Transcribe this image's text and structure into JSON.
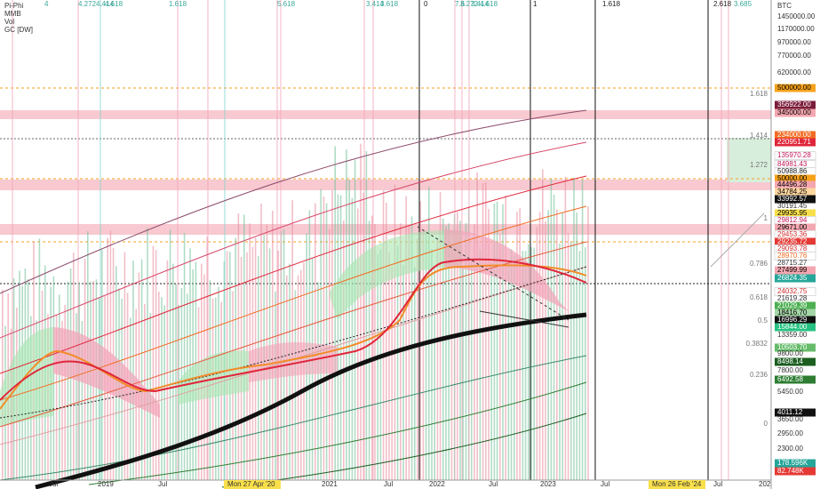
{
  "legend": [
    "Pi-Phi",
    "MMB",
    "Vol",
    "GC [DW]"
  ],
  "top_labels": [
    "4",
    "4.272",
    "4.414",
    "4.618",
    "1.618",
    "5.618",
    "3.414",
    "3.618",
    "0",
    "7.6",
    "3.272",
    "3.414",
    "4.618",
    "1",
    "1.618",
    "2.618",
    "3.685"
  ],
  "fib_labels": [
    "1.618",
    "1.414",
    "1.272",
    "1",
    "0.786",
    "0.618",
    "0.5",
    "0.3832",
    "0.236",
    "0"
  ],
  "price_axis": [
    {
      "label": "BTC",
      "bg": "none",
      "fg": "#333"
    },
    {
      "label": "1450000.00",
      "bg": "none",
      "fg": "#333"
    },
    {
      "label": "1170000.00",
      "bg": "none",
      "fg": "#333"
    },
    {
      "label": "970000.00",
      "bg": "none",
      "fg": "#333"
    },
    {
      "label": "770000.00",
      "bg": "none",
      "fg": "#333"
    },
    {
      "label": "620000.00",
      "bg": "none",
      "fg": "#333"
    },
    {
      "label": "500000.00",
      "bg": "#f7a21b",
      "fg": "#000"
    },
    {
      "label": "356922.00",
      "bg": "#7b1c3a",
      "fg": "#fff"
    },
    {
      "label": "345000.00",
      "bg": "#f4a7b0",
      "fg": "#000"
    },
    {
      "label": "234000.00",
      "bg": "#f26b21",
      "fg": "#fff"
    },
    {
      "label": "220951.71",
      "bg": "#e0263a",
      "fg": "#fff"
    },
    {
      "label": "135970.28",
      "bg": "#fff",
      "fg": "#c2185b"
    },
    {
      "label": "84981.43",
      "bg": "#fff",
      "fg": "#c2185b"
    },
    {
      "label": "50988.86",
      "bg": "#fff",
      "fg": "#222"
    },
    {
      "label": "50000.00",
      "bg": "#f7a21b",
      "fg": "#000"
    },
    {
      "label": "44496.28",
      "bg": "#f4a7b0",
      "fg": "#000"
    },
    {
      "label": "34784.25",
      "bg": "#ffd7a0",
      "fg": "#000"
    },
    {
      "label": "33992.57",
      "bg": "#111",
      "fg": "#fff"
    },
    {
      "label": "30191.45",
      "bg": "none",
      "fg": "#333"
    },
    {
      "label": "29935.95",
      "bg": "#f9e04b",
      "fg": "#000"
    },
    {
      "label": "29812.94",
      "bg": "#fff",
      "fg": "#c2185b"
    },
    {
      "label": "29671.00",
      "bg": "#f4a7b0",
      "fg": "#000"
    },
    {
      "label": "29453.36",
      "bg": "#fff",
      "fg": "#d32f2f"
    },
    {
      "label": "29235.72",
      "bg": "#e53935",
      "fg": "#fff"
    },
    {
      "label": "29093.78",
      "bg": "#fff",
      "fg": "#d32f2f"
    },
    {
      "label": "28970.76",
      "bg": "#fff",
      "fg": "#f26b21"
    },
    {
      "label": "28715.27",
      "bg": "none",
      "fg": "#333"
    },
    {
      "label": "27499.99",
      "bg": "#f4a7b0",
      "fg": "#000"
    },
    {
      "label": "26824.35",
      "bg": "#26a69a",
      "fg": "#fff"
    },
    {
      "label": "24032.75",
      "bg": "#fff",
      "fg": "#d32f2f"
    },
    {
      "label": "21619.28",
      "bg": "none",
      "fg": "#333"
    },
    {
      "label": "21029.39",
      "bg": "#4caf50",
      "fg": "#fff"
    },
    {
      "label": "18416.70",
      "bg": "#a5d6a7",
      "fg": "#000"
    },
    {
      "label": "16996.29",
      "bg": "#111",
      "fg": "#fff"
    },
    {
      "label": "15844.00",
      "bg": "#26c281",
      "fg": "#fff"
    },
    {
      "label": "13359.00",
      "bg": "none",
      "fg": "#333"
    },
    {
      "label": "10503.70",
      "bg": "#66bb6a",
      "fg": "#fff"
    },
    {
      "label": "9800.00",
      "bg": "none",
      "fg": "#333"
    },
    {
      "label": "8498.14",
      "bg": "#1b5e20",
      "fg": "#fff"
    },
    {
      "label": "7800.00",
      "bg": "none",
      "fg": "#333"
    },
    {
      "label": "6492.58",
      "bg": "#2e7d32",
      "fg": "#fff"
    },
    {
      "label": "5450.00",
      "bg": "none",
      "fg": "#333"
    },
    {
      "label": "4011.12",
      "bg": "#111",
      "fg": "#fff"
    },
    {
      "label": "3650.00",
      "bg": "none",
      "fg": "#333"
    },
    {
      "label": "2950.00",
      "bg": "none",
      "fg": "#333"
    },
    {
      "label": "2300.00",
      "bg": "none",
      "fg": "#333"
    },
    {
      "label": "178.596K",
      "bg": "#26a69a",
      "fg": "#fff"
    },
    {
      "label": "82.748K",
      "bg": "#e53935",
      "fg": "#fff"
    }
  ],
  "time_axis": [
    {
      "label": "Jul",
      "bg": "none"
    },
    {
      "label": "2019",
      "bg": "none"
    },
    {
      "label": "Jul",
      "bg": "none"
    },
    {
      "label": "Mon 27 Apr '20",
      "bg": "#f9e04b"
    },
    {
      "label": "2021",
      "bg": "none"
    },
    {
      "label": "Jul",
      "bg": "none"
    },
    {
      "label": "2022",
      "bg": "none"
    },
    {
      "label": "Jul",
      "bg": "none"
    },
    {
      "label": "2023",
      "bg": "none"
    },
    {
      "label": "Jul",
      "bg": "none"
    },
    {
      "label": "Mon 26 Feb '24",
      "bg": "#f9e04b"
    },
    {
      "label": "Jul",
      "bg": "none"
    },
    {
      "label": "202",
      "bg": "none"
    }
  ]
}
